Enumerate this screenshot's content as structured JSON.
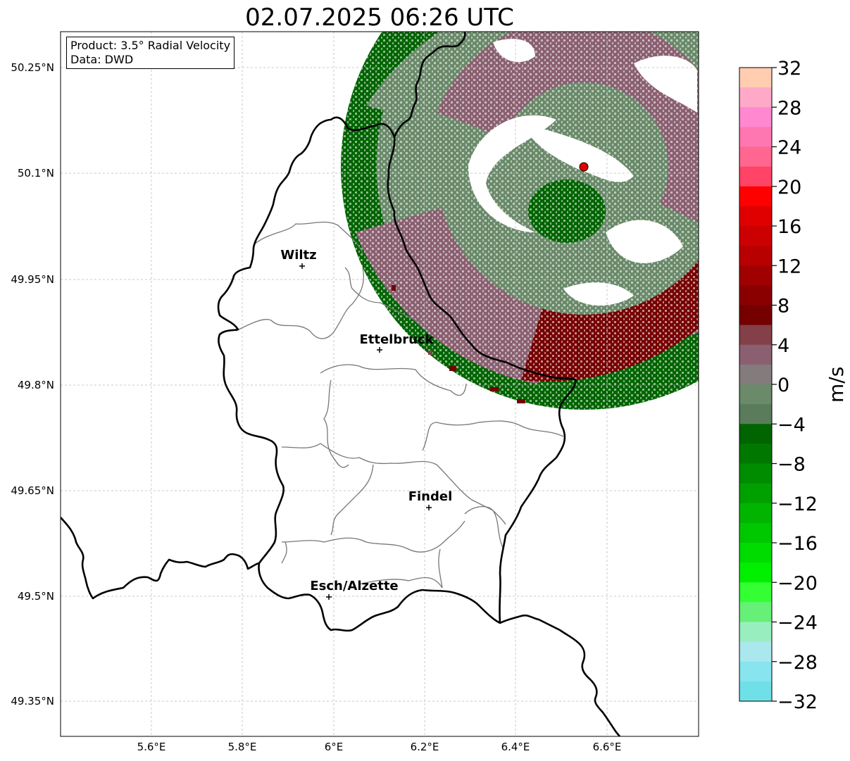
{
  "title": "02.07.2025 06:26 UTC",
  "info": {
    "product_line": "Product: 3.5° Radial Velocity",
    "data_line": "Data: DWD"
  },
  "axes": {
    "lat_ticks": [
      "50.25°N",
      "50.1°N",
      "49.95°N",
      "49.8°N",
      "49.65°N",
      "49.5°N",
      "49.35°N"
    ],
    "lon_ticks": [
      "5.6°E",
      "5.8°E",
      "6°E",
      "6.2°E",
      "6.4°E",
      "6.6°E"
    ],
    "gridlines": true,
    "grid_color": "#bbbbbb"
  },
  "cities": [
    {
      "name": "Wiltz",
      "lon": 5.93,
      "lat": 49.966
    },
    {
      "name": "Ettelbruck",
      "lon": 6.104,
      "lat": 49.847
    },
    {
      "name": "Findel",
      "lon": 6.211,
      "lat": 49.627
    },
    {
      "name": "Esch/Alzette",
      "lon": 5.99,
      "lat": 49.5
    }
  ],
  "radar_site": {
    "lon": 6.548,
    "lat": 50.11,
    "color": "#e00000"
  },
  "colorbar": {
    "unit": "m/s",
    "range": [
      -32,
      32
    ],
    "tick_labels": [
      "32",
      "28",
      "24",
      "20",
      "16",
      "12",
      "8",
      "4",
      "0",
      "−4",
      "−8",
      "−12",
      "−16",
      "−20",
      "−24",
      "−28",
      "−32"
    ],
    "colors_top_to_bottom": [
      "#ffcdb0",
      "#ffa9c8",
      "#ff88d0",
      "#ff77b0",
      "#ff6690",
      "#ff4466",
      "#ff0000",
      "#e00000",
      "#cc0000",
      "#b80000",
      "#a00000",
      "#8a0000",
      "#740000",
      "#844048",
      "#8a6070",
      "#847c7c",
      "#6a8a6a",
      "#5a7c5a",
      "#006400",
      "#007800",
      "#008c00",
      "#00a000",
      "#00b400",
      "#00c800",
      "#00dc00",
      "#00f000",
      "#33ff33",
      "#66f077",
      "#99eec0",
      "#aae8ee",
      "#88e4ee",
      "#70e0e8"
    ]
  },
  "colors": {
    "border_country": "#000000",
    "border_canton": "#777777",
    "vel_dark_red": "#760000",
    "vel_light_red": "#844048",
    "vel_pink_grey": "#8a6070",
    "vel_grey_green": "#6a8a6a",
    "vel_dark_green": "#006400"
  }
}
